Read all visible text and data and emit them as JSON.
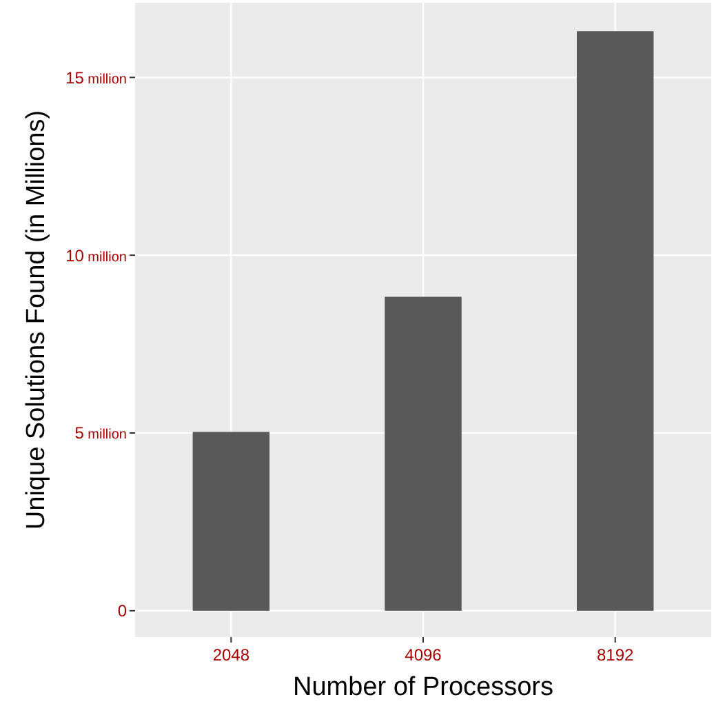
{
  "chart_data": {
    "type": "bar",
    "xlabel": "Number of Processors",
    "ylabel": "Unique Solutions Found (in Millions)",
    "categories": [
      "2048",
      "4096",
      "8192"
    ],
    "series": [
      {
        "color": "#595959",
        "values": [
          5.03,
          8.83,
          16.3
        ]
      }
    ],
    "ylim": [
      -0.74,
      17.1
    ],
    "yticks": [
      {
        "value": 0,
        "label": "0"
      },
      {
        "value": 5,
        "label": "5 million"
      },
      {
        "value": 10,
        "label": "10 million"
      },
      {
        "value": 15,
        "label": "15 million"
      }
    ],
    "grid": true
  }
}
